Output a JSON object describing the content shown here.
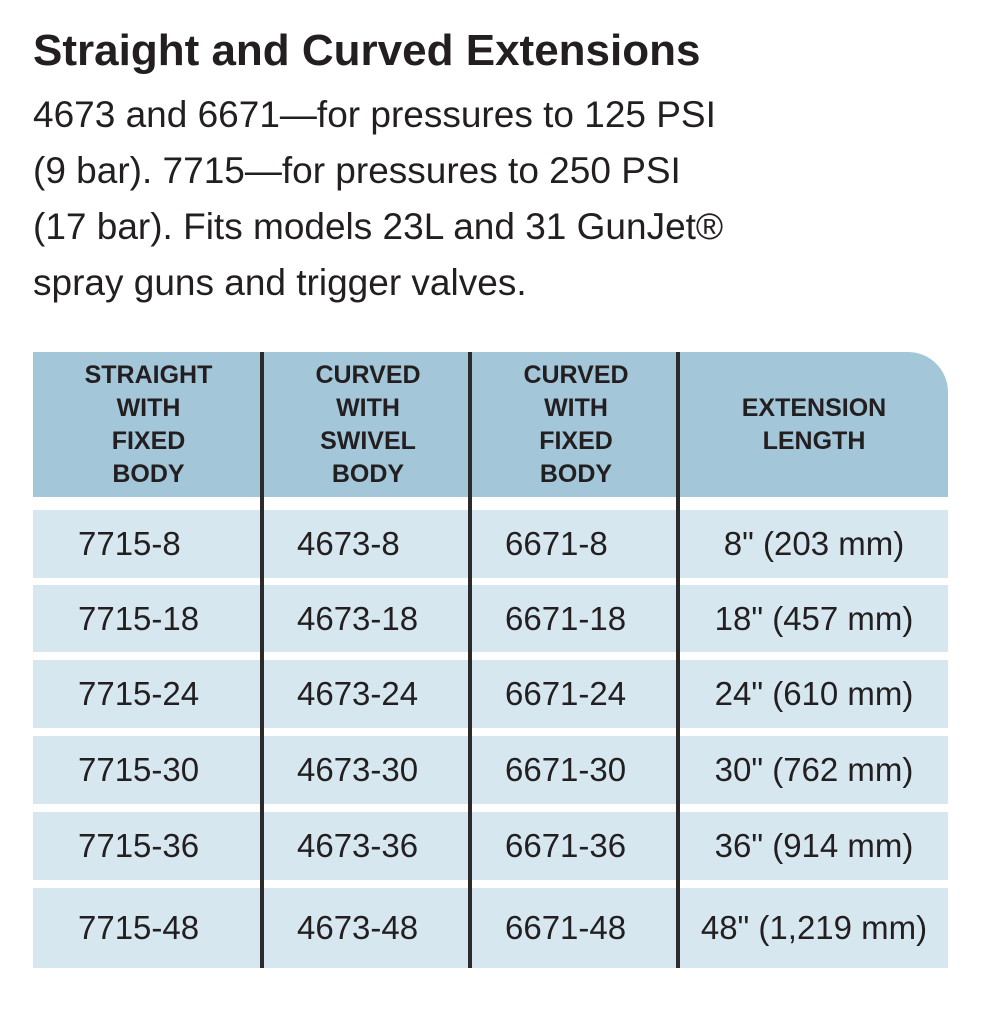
{
  "header": {
    "title": "Straight and Curved Extensions",
    "description": [
      "4673 and 6671—for pressures to 125 PSI",
      "(9 bar). 7715—for pressures to 250 PSI",
      "(17 bar). Fits models 23L and 31 GunJet®",
      "spray guns and trigger valves."
    ]
  },
  "table": {
    "columns": [
      [
        "STRAIGHT",
        "WITH",
        "FIXED",
        "BODY"
      ],
      [
        "CURVED",
        "WITH",
        "SWIVEL",
        "BODY"
      ],
      [
        "CURVED",
        "WITH",
        "FIXED",
        "BODY"
      ],
      [
        "EXTENSION",
        "LENGTH"
      ]
    ],
    "rows": [
      [
        "7715-8",
        "4673-8",
        "6671-8",
        "8\" (203 mm)"
      ],
      [
        "7715-18",
        "4673-18",
        "6671-18",
        "18\" (457 mm)"
      ],
      [
        "7715-24",
        "4673-24",
        "6671-24",
        "24\" (610 mm)"
      ],
      [
        "7715-30",
        "4673-30",
        "6671-30",
        "30\" (762 mm)"
      ],
      [
        "7715-36",
        "4673-36",
        "6671-36",
        "36\" (914 mm)"
      ],
      [
        "7715-48",
        "4673-48",
        "6671-48",
        "48\" (1,219 mm)"
      ]
    ]
  }
}
